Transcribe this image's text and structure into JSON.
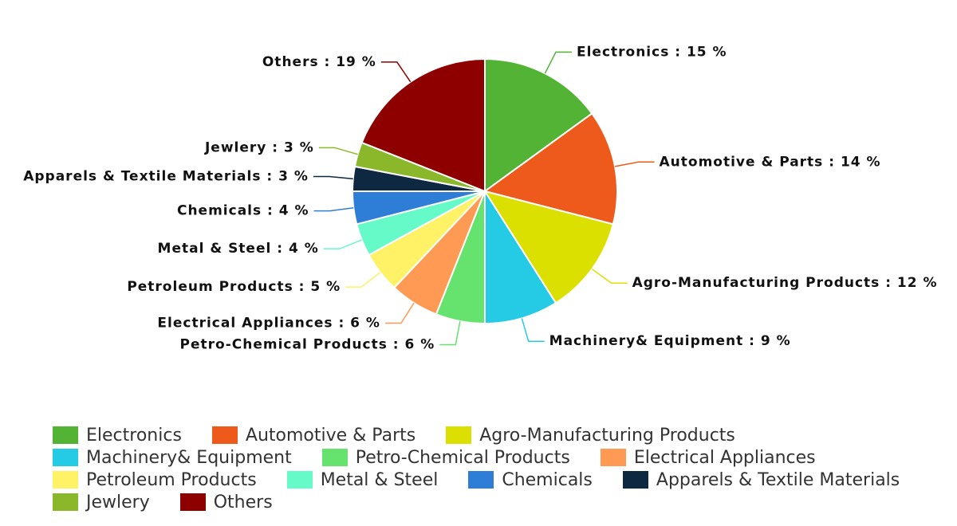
{
  "chart_data": {
    "type": "pie",
    "categories": [
      "Electronics",
      "Automotive & Parts",
      "Agro-Manufacturing Products",
      "Machinery& Equipment",
      "Petro-Chemical Products",
      "Electrical Appliances",
      "Petroleum Products",
      "Metal & Steel",
      "Chemicals",
      "Apparels & Textile Materials",
      "Jewlery",
      "Others"
    ],
    "values": [
      15,
      14,
      12,
      9,
      6,
      6,
      5,
      4,
      4,
      3,
      3,
      19
    ],
    "value_labels": [
      "Electronics : 15 %",
      "Automotive & Parts : 14 %",
      "Agro-Manufacturing Products : 12 %",
      "Machinery& Equipment : 9 %",
      "Petro-Chemical Products : 6 %",
      "Electrical Appliances : 6 %",
      "Petroleum Products : 5 %",
      "Metal & Steel : 4 %",
      "Chemicals : 4 %",
      "Apparels & Textile Materials : 3 %",
      "Jewlery : 3 %",
      "Others : 19 %"
    ],
    "colors": [
      "#52b334",
      "#ee5a1c",
      "#dce000",
      "#25cbe4",
      "#66e26e",
      "#ff9a55",
      "#fff266",
      "#66fac8",
      "#2e7ed8",
      "#0d2840",
      "#8ab82a",
      "#8e0000"
    ],
    "legend": "bottom"
  }
}
